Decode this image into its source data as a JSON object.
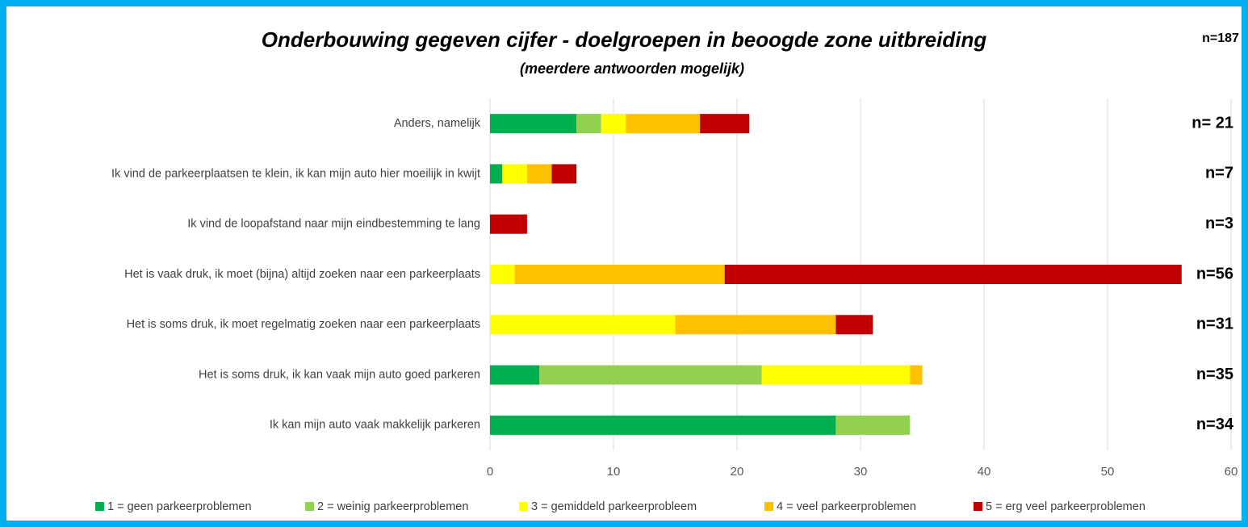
{
  "chart_data": {
    "type": "stacked_barh",
    "title": "Onderbouwing gegeven cijfer - doelgroepen in beoogde zone uitbreiding",
    "subtitle": "(meerdere antwoorden mogelijk)",
    "total_label": "n=187",
    "categories": [
      "Anders, namelijk",
      "Ik vind de parkeerplaatsen te klein, ik kan mijn auto hier moeilijk in kwijt",
      "Ik vind de loopafstand naar mijn eindbestemming te lang",
      "Het is vaak druk, ik moet (bijna) altijd zoeken naar een parkeerplaats",
      "Het is soms druk, ik moet regelmatig zoeken naar een parkeerplaats",
      "Het is soms druk, ik kan vaak mijn auto goed parkeren",
      "Ik kan mijn auto vaak makkelijk parkeren"
    ],
    "n_labels": [
      "n= 21",
      "n=7",
      "n=3",
      "n=56",
      "n=31",
      "n=35",
      "n=34"
    ],
    "series": [
      {
        "name": "1 = geen parkeerproblemen",
        "color": "#00b050",
        "values": [
          7,
          1,
          0,
          0,
          0,
          4,
          28
        ]
      },
      {
        "name": "2 = weinig parkeerproblemen",
        "color": "#92d050",
        "values": [
          2,
          0,
          0,
          0,
          0,
          18,
          6
        ]
      },
      {
        "name": "3 = gemiddeld parkeerprobleem",
        "color": "#ffff00",
        "values": [
          2,
          2,
          0,
          2,
          15,
          12,
          0
        ]
      },
      {
        "name": "4 = veel parkeerproblemen",
        "color": "#ffc000",
        "values": [
          6,
          2,
          0,
          17,
          13,
          1,
          0
        ]
      },
      {
        "name": "5 = erg veel parkeerproblemen",
        "color": "#c00000",
        "values": [
          4,
          2,
          3,
          37,
          3,
          0,
          0
        ]
      }
    ],
    "xlim": [
      0,
      60
    ],
    "xticks": [
      0,
      10,
      20,
      30,
      40,
      50,
      60
    ],
    "grid": true,
    "legend": "bottom"
  }
}
